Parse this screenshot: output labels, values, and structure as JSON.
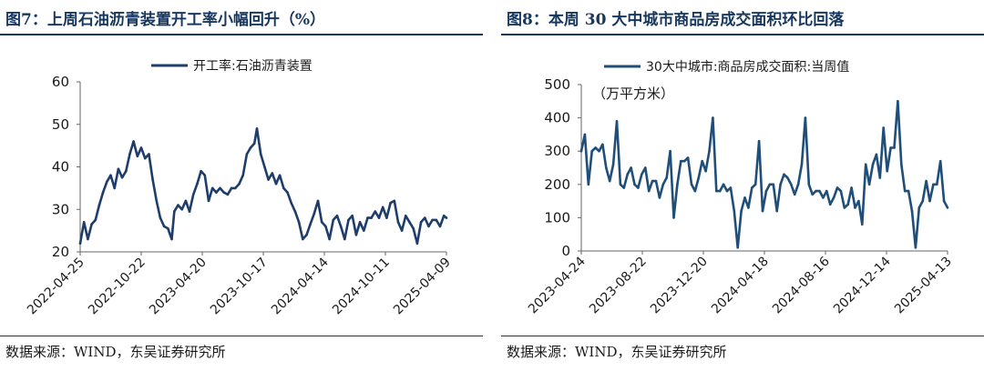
{
  "figures": [
    {
      "title": "图7：上周石油沥青装置开工率小幅回升（%）",
      "source": "数据来源：WIND，东吴证券研究所"
    },
    {
      "title": "图8：本周 30 大中城市商品房成交面积环比回落",
      "source": "数据来源：WIND，东吴证券研究所"
    }
  ],
  "chart_data": [
    {
      "type": "line",
      "legend_position": "top-center",
      "series": [
        {
          "name": "开工率:石油沥青装置",
          "color": "#1f3d6b",
          "points": [
            [
              0,
              22.0
            ],
            [
              3,
              27.0
            ],
            [
              6,
              23.0
            ],
            [
              9,
              26.5
            ],
            [
              12,
              27.5
            ],
            [
              15,
              31.0
            ],
            [
              18,
              34.0
            ],
            [
              21,
              36.5
            ],
            [
              24,
              38.0
            ],
            [
              27,
              35.0
            ],
            [
              30,
              39.5
            ],
            [
              33,
              37.5
            ],
            [
              36,
              39.0
            ],
            [
              39,
              43.0
            ],
            [
              42,
              46.0
            ],
            [
              45,
              42.5
            ],
            [
              48,
              44.5
            ],
            [
              51,
              42.0
            ],
            [
              54,
              43.0
            ],
            [
              57,
              37.0
            ],
            [
              60,
              32.0
            ],
            [
              63,
              28.0
            ],
            [
              66,
              26.0
            ],
            [
              69,
              25.5
            ],
            [
              72,
              23.0
            ],
            [
              74,
              29.5
            ],
            [
              77,
              31.0
            ],
            [
              80,
              30.0
            ],
            [
              83,
              32.0
            ],
            [
              86,
              29.5
            ],
            [
              89,
              33.5
            ],
            [
              92,
              36.0
            ],
            [
              95,
              39.0
            ],
            [
              98,
              38.0
            ],
            [
              101,
              32.0
            ],
            [
              104,
              35.0
            ],
            [
              107,
              34.0
            ],
            [
              110,
              35.0
            ],
            [
              113,
              34.0
            ],
            [
              116,
              33.5
            ],
            [
              119,
              35.0
            ],
            [
              122,
              35.0
            ],
            [
              125,
              36.0
            ],
            [
              128,
              38.0
            ],
            [
              131,
              43.0
            ],
            [
              134,
              44.5
            ],
            [
              137,
              45.5
            ],
            [
              139,
              49.0
            ],
            [
              142,
              43.0
            ],
            [
              145,
              40.0
            ],
            [
              148,
              37.0
            ],
            [
              151,
              38.5
            ],
            [
              154,
              36.0
            ],
            [
              157,
              38.0
            ],
            [
              160,
              35.0
            ],
            [
              163,
              34.0
            ],
            [
              166,
              31.5
            ],
            [
              169,
              29.5
            ],
            [
              172,
              27.0
            ],
            [
              175,
              23.0
            ],
            [
              178,
              24.0
            ],
            [
              181,
              26.5
            ],
            [
              184,
              29.0
            ],
            [
              187,
              32.0
            ],
            [
              190,
              27.0
            ],
            [
              193,
              26.0
            ],
            [
              196,
              23.0
            ],
            [
              199,
              27.5
            ],
            [
              202,
              28.5
            ],
            [
              205,
              26.0
            ],
            [
              208,
              23.0
            ],
            [
              211,
              27.5
            ],
            [
              214,
              28.5
            ],
            [
              217,
              24.0
            ],
            [
              220,
              27.0
            ],
            [
              223,
              25.0
            ],
            [
              226,
              28.0
            ],
            [
              229,
              28.0
            ],
            [
              232,
              29.5
            ],
            [
              235,
              28.0
            ],
            [
              238,
              30.5
            ],
            [
              241,
              28.0
            ],
            [
              244,
              31.5
            ],
            [
              247,
              32.0
            ],
            [
              250,
              27.0
            ],
            [
              253,
              25.0
            ],
            [
              256,
              28.5
            ],
            [
              259,
              27.0
            ],
            [
              262,
              25.5
            ],
            [
              265,
              22.0
            ],
            [
              268,
              27.0
            ],
            [
              271,
              28.0
            ],
            [
              274,
              26.0
            ],
            [
              277,
              27.5
            ],
            [
              280,
              27.5
            ],
            [
              283,
              26.0
            ],
            [
              286,
              28.5
            ],
            [
              288,
              28.0
            ]
          ]
        }
      ],
      "x_axis": {
        "type": "date",
        "ticks": [
          "2022-04-25",
          "2022-10-22",
          "2023-04-20",
          "2023-10-17",
          "2024-04-14",
          "2024-10-11",
          "2025-04-09"
        ]
      },
      "y_axis": {
        "min": 20,
        "max": 60,
        "ticks": [
          "20",
          "30",
          "40",
          "50",
          "60"
        ]
      },
      "grid": false
    },
    {
      "type": "line",
      "legend_position": "top-center",
      "annotation": "（万平方米）",
      "series": [
        {
          "name": "30大中城市:商品房成交面积:当周值",
          "color": "#1f4e79",
          "points": [
            [
              0,
              300
            ],
            [
              2,
              350
            ],
            [
              4,
              200
            ],
            [
              6,
              300
            ],
            [
              8,
              310
            ],
            [
              10,
              300
            ],
            [
              12,
              320
            ],
            [
              14,
              250
            ],
            [
              16,
              210
            ],
            [
              18,
              260
            ],
            [
              20,
              390
            ],
            [
              22,
              200
            ],
            [
              24,
              190
            ],
            [
              26,
              230
            ],
            [
              28,
              250
            ],
            [
              30,
              200
            ],
            [
              32,
              190
            ],
            [
              34,
              230
            ],
            [
              36,
              250
            ],
            [
              38,
              180
            ],
            [
              40,
              210
            ],
            [
              42,
              210
            ],
            [
              44,
              160
            ],
            [
              46,
              200
            ],
            [
              48,
              220
            ],
            [
              50,
              300
            ],
            [
              52,
              100
            ],
            [
              54,
              200
            ],
            [
              56,
              270
            ],
            [
              58,
              270
            ],
            [
              60,
              280
            ],
            [
              62,
              200
            ],
            [
              64,
              180
            ],
            [
              66,
              220
            ],
            [
              68,
              270
            ],
            [
              70,
              240
            ],
            [
              72,
              300
            ],
            [
              74,
              400
            ],
            [
              76,
              180
            ],
            [
              78,
              180
            ],
            [
              80,
              200
            ],
            [
              82,
              180
            ],
            [
              84,
              190
            ],
            [
              86,
              120
            ],
            [
              88,
              10
            ],
            [
              90,
              120
            ],
            [
              92,
              160
            ],
            [
              94,
              130
            ],
            [
              96,
              190
            ],
            [
              98,
              200
            ],
            [
              100,
              330
            ],
            [
              102,
              120
            ],
            [
              104,
              180
            ],
            [
              106,
              200
            ],
            [
              108,
              200
            ],
            [
              110,
              120
            ],
            [
              112,
              200
            ],
            [
              114,
              230
            ],
            [
              116,
              220
            ],
            [
              118,
              200
            ],
            [
              120,
              170
            ],
            [
              122,
              200
            ],
            [
              124,
              260
            ],
            [
              126,
              400
            ],
            [
              128,
              200
            ],
            [
              130,
              170
            ],
            [
              132,
              180
            ],
            [
              134,
              180
            ],
            [
              136,
              160
            ],
            [
              138,
              180
            ],
            [
              140,
              140
            ],
            [
              142,
              160
            ],
            [
              144,
              190
            ],
            [
              146,
              180
            ],
            [
              148,
              130
            ],
            [
              150,
              140
            ],
            [
              152,
              190
            ],
            [
              154,
              130
            ],
            [
              156,
              150
            ],
            [
              158,
              80
            ],
            [
              160,
              260
            ],
            [
              162,
              200
            ],
            [
              164,
              260
            ],
            [
              166,
              290
            ],
            [
              168,
              220
            ],
            [
              170,
              370
            ],
            [
              172,
              240
            ],
            [
              174,
              310
            ],
            [
              176,
              310
            ],
            [
              178,
              450
            ],
            [
              180,
              260
            ],
            [
              182,
              180
            ],
            [
              184,
              180
            ],
            [
              186,
              120
            ],
            [
              188,
              10
            ],
            [
              190,
              130
            ],
            [
              192,
              150
            ],
            [
              194,
              210
            ],
            [
              196,
              150
            ],
            [
              198,
              200
            ],
            [
              200,
              200
            ],
            [
              202,
              270
            ],
            [
              204,
              150
            ],
            [
              206,
              130
            ]
          ]
        }
      ],
      "x_axis": {
        "type": "date",
        "ticks": [
          "2023-04-24",
          "2023-08-22",
          "2023-12-20",
          "2024-04-18",
          "2024-08-16",
          "2024-12-14",
          "2025-04-13"
        ]
      },
      "y_axis": {
        "min": 0,
        "max": 500,
        "ticks": [
          "0",
          "100",
          "200",
          "300",
          "400",
          "500"
        ]
      },
      "grid": false
    }
  ]
}
